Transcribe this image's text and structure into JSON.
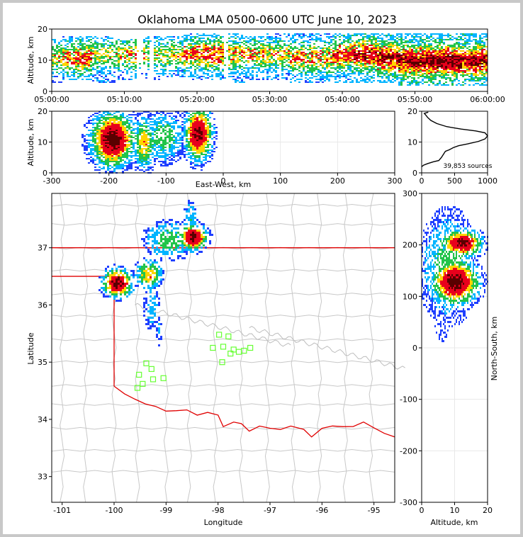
{
  "chart_data": {
    "type": "heatmap",
    "title": "Oklahoma LMA 0500-0600 UTC June 10, 2023",
    "source_count": "39,853 sources",
    "colors": {
      "low": "#1f3fff",
      "mid": "#00b4ff",
      "green": "#22c44a",
      "yellow": "#ffd400",
      "red": "#e8001c",
      "dark": "#5a0000",
      "state_border": "#e00000",
      "county": "#c8c8c8",
      "stations": "#66ff33"
    },
    "panels": {
      "time_altitude": {
        "ylabel": "Altitude, km",
        "x_ticks": [
          "05:00:00",
          "05:10:00",
          "05:20:00",
          "05:30:00",
          "05:40:00",
          "05:50:00",
          "06:00:00"
        ],
        "y_ticks": [
          0,
          10,
          20
        ],
        "ylim": [
          0,
          20
        ]
      },
      "ew_altitude": {
        "xlabel": "East-West, km",
        "ylabel": "Altitude, km",
        "x_ticks": [
          -300,
          -200,
          -100,
          0,
          100,
          200,
          300
        ],
        "y_ticks": [
          0,
          10,
          20
        ],
        "xlim": [
          -300,
          300
        ],
        "ylim": [
          0,
          20
        ]
      },
      "histogram": {
        "x_ticks": [
          0,
          500,
          1000
        ],
        "y_ticks": [
          0,
          10,
          20
        ],
        "xlim": [
          0,
          1000
        ],
        "ylim": [
          0,
          20
        ]
      },
      "plan": {
        "xlabel": "Longitude",
        "ylabel": "Latitude",
        "x_ticks": [
          -101,
          -100,
          -99,
          -98,
          -97,
          -96,
          -95
        ],
        "y_ticks": [
          33,
          34,
          35,
          36,
          37
        ],
        "xlim": [
          -101.2,
          -94.6
        ],
        "ylim": [
          32.55,
          37.95
        ]
      },
      "ns_altitude": {
        "xlabel": "Altitude, km",
        "ylabel": "North-South, km",
        "x_ticks": [
          0,
          10,
          20
        ],
        "y_ticks": [
          -300,
          -200,
          -100,
          0,
          100,
          200,
          300
        ],
        "xlim": [
          0,
          20
        ],
        "ylim": [
          -300,
          300
        ]
      }
    },
    "time_altitude_bins": [
      {
        "t": 0.5,
        "alt": [
          3,
          17
        ],
        "core": 11,
        "d": 0.5
      },
      {
        "t": 2,
        "alt": [
          4,
          18
        ],
        "core": 11,
        "d": 0.6
      },
      {
        "t": 4,
        "alt": [
          4,
          18
        ],
        "core": 11,
        "d": 0.7
      },
      {
        "t": 7,
        "alt": [
          3,
          18
        ],
        "core": 12,
        "d": 0.5
      },
      {
        "t": 10,
        "alt": [
          4,
          17
        ],
        "core": 12,
        "d": 0.55
      },
      {
        "t": 13,
        "alt": [
          4,
          18
        ],
        "core": 12,
        "d": 0.5
      },
      {
        "t": 17,
        "alt": [
          5,
          18
        ],
        "core": 12,
        "d": 0.5
      },
      {
        "t": 19,
        "alt": [
          4,
          19
        ],
        "core": 12,
        "d": 0.65
      },
      {
        "t": 22,
        "alt": [
          4,
          19
        ],
        "core": 12,
        "d": 0.7
      },
      {
        "t": 25,
        "alt": [
          3,
          19
        ],
        "core": 12,
        "d": 0.6
      },
      {
        "t": 28,
        "alt": [
          4,
          18
        ],
        "core": 12,
        "d": 0.55
      },
      {
        "t": 31,
        "alt": [
          4,
          19
        ],
        "core": 12,
        "d": 0.55
      },
      {
        "t": 34,
        "alt": [
          3,
          19
        ],
        "core": 11,
        "d": 0.6
      },
      {
        "t": 37,
        "alt": [
          3,
          19
        ],
        "core": 11,
        "d": 0.6
      },
      {
        "t": 40,
        "alt": [
          3,
          19
        ],
        "core": 12,
        "d": 0.7
      },
      {
        "t": 43,
        "alt": [
          3,
          19
        ],
        "core": 12,
        "d": 0.8
      },
      {
        "t": 46,
        "alt": [
          3,
          19
        ],
        "core": 11,
        "d": 0.85
      },
      {
        "t": 49,
        "alt": [
          2,
          19
        ],
        "core": 10,
        "d": 0.9
      },
      {
        "t": 52,
        "alt": [
          2,
          19
        ],
        "core": 10,
        "d": 0.95
      },
      {
        "t": 55,
        "alt": [
          2,
          19
        ],
        "core": 10,
        "d": 0.95
      },
      {
        "t": 58,
        "alt": [
          2,
          19
        ],
        "core": 10,
        "d": 0.9
      }
    ],
    "ew_cells": [
      {
        "x": -195,
        "z": 11,
        "sx": 22,
        "sz": 5,
        "peak": 1.0
      },
      {
        "x": -140,
        "z": 10,
        "sx": 12,
        "sz": 5,
        "peak": 0.55
      },
      {
        "x": -105,
        "z": 12,
        "sx": 22,
        "sz": 5,
        "peak": 0.35
      },
      {
        "x": -45,
        "z": 13,
        "sx": 14,
        "sz": 5,
        "peak": 0.95
      }
    ],
    "histogram_profile": [
      [
        0,
        2
      ],
      [
        30,
        2.5
      ],
      [
        90,
        3
      ],
      [
        180,
        3.6
      ],
      [
        260,
        4
      ],
      [
        300,
        5
      ],
      [
        330,
        6
      ],
      [
        360,
        7
      ],
      [
        420,
        7.5
      ],
      [
        480,
        8.2
      ],
      [
        560,
        8.8
      ],
      [
        700,
        9.4
      ],
      [
        860,
        10.2
      ],
      [
        960,
        11
      ],
      [
        1000,
        12
      ],
      [
        960,
        13
      ],
      [
        820,
        13.6
      ],
      [
        600,
        14.2
      ],
      [
        380,
        15
      ],
      [
        230,
        16
      ],
      [
        140,
        17
      ],
      [
        90,
        18
      ],
      [
        60,
        18.8
      ],
      [
        40,
        19.3
      ],
      [
        100,
        19.7
      ]
    ],
    "plan_cells": [
      {
        "lon": -99.95,
        "lat": 36.4,
        "slon": 0.16,
        "slat": 0.14,
        "peak": 1.0
      },
      {
        "lon": -99.35,
        "lat": 36.55,
        "slon": 0.15,
        "slat": 0.15,
        "peak": 0.55
      },
      {
        "lon": -98.5,
        "lat": 37.2,
        "slon": 0.16,
        "slat": 0.13,
        "peak": 0.95
      },
      {
        "lon": -98.95,
        "lat": 37.15,
        "slon": 0.3,
        "slat": 0.2,
        "peak": 0.35
      },
      {
        "lon": -99.3,
        "lat": 36.0,
        "slon": 0.1,
        "slat": 0.3,
        "peak": 0.2
      },
      {
        "lon": -99.15,
        "lat": 35.55,
        "slon": 0.05,
        "slat": 0.2,
        "peak": 0.15
      },
      {
        "lon": -98.55,
        "lat": 37.55,
        "slon": 0.08,
        "slat": 0.2,
        "peak": 0.25
      }
    ],
    "ns_cells": [
      {
        "z": 10,
        "y": 130,
        "sz": 4,
        "sy": 25,
        "peak": 1.0
      },
      {
        "z": 12,
        "y": 205,
        "sz": 3.5,
        "sy": 15,
        "peak": 0.95
      },
      {
        "z": 8,
        "y": 160,
        "sz": 5,
        "sy": 60,
        "peak": 0.35
      },
      {
        "z": 6,
        "y": 60,
        "sz": 2,
        "sy": 40,
        "peak": 0.1
      }
    ],
    "stations": [
      [
        -97.98,
        35.48
      ],
      [
        -97.8,
        35.45
      ],
      [
        -97.9,
        35.27
      ],
      [
        -98.1,
        35.25
      ],
      [
        -97.7,
        35.22
      ],
      [
        -97.6,
        35.18
      ],
      [
        -97.76,
        35.15
      ],
      [
        -97.5,
        35.2
      ],
      [
        -97.38,
        35.25
      ],
      [
        -97.92,
        35.0
      ],
      [
        -99.38,
        34.98
      ],
      [
        -99.28,
        34.88
      ],
      [
        -99.52,
        34.78
      ],
      [
        -99.25,
        34.7
      ],
      [
        -99.05,
        34.72
      ],
      [
        -99.45,
        34.62
      ],
      [
        -99.55,
        34.55
      ]
    ]
  }
}
